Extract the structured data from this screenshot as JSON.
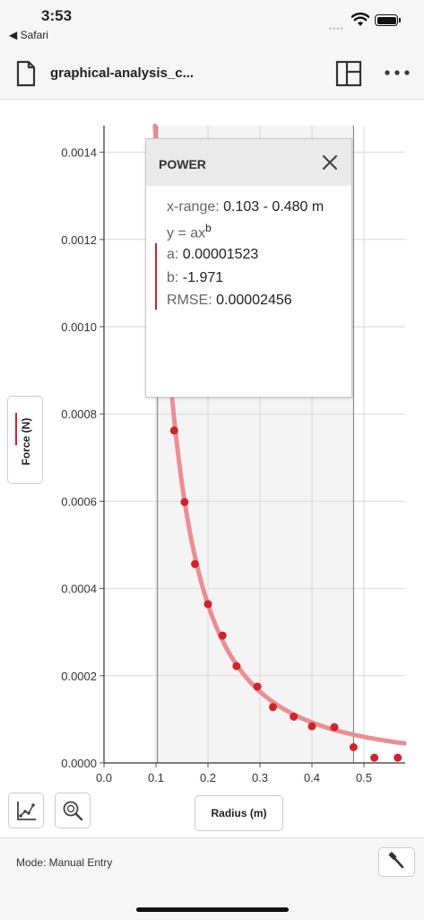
{
  "status_bar": {
    "time": "3:53",
    "back_label": "◀ Safari",
    "signal": "••••"
  },
  "toolbar": {
    "title": "graphical-analysis_c...",
    "file_icon": "file-icon",
    "layout_icon": "layout-grid-icon",
    "more_icon": "more-icon"
  },
  "chart_data": {
    "type": "scatter",
    "xlabel": "Radius (m)",
    "ylabel": "Force (N)",
    "xlim": [
      0.0,
      0.58
    ],
    "ylim": [
      0.0,
      0.00145
    ],
    "x_ticks": [
      "0.0",
      "0.1",
      "0.2",
      "0.3",
      "0.4",
      "0.5"
    ],
    "y_ticks": [
      "0.0000",
      "0.0002",
      "0.0004",
      "0.0006",
      "0.0008",
      "0.0010",
      "0.0012",
      "0.0014"
    ],
    "x_tick_values": [
      0.0,
      0.1,
      0.2,
      0.3,
      0.4,
      0.5
    ],
    "y_tick_values": [
      0.0,
      0.0002,
      0.0004,
      0.0006,
      0.0008,
      0.001,
      0.0012,
      0.0014
    ],
    "selection_range": [
      0.103,
      0.48
    ],
    "points": [
      {
        "x": 0.135,
        "y": 0.000762
      },
      {
        "x": 0.155,
        "y": 0.000598
      },
      {
        "x": 0.175,
        "y": 0.000456
      },
      {
        "x": 0.2,
        "y": 0.000364
      },
      {
        "x": 0.228,
        "y": 0.000292
      },
      {
        "x": 0.255,
        "y": 0.000222
      },
      {
        "x": 0.295,
        "y": 0.000175
      },
      {
        "x": 0.325,
        "y": 0.000128
      },
      {
        "x": 0.365,
        "y": 0.000106
      },
      {
        "x": 0.4,
        "y": 8.4e-05
      },
      {
        "x": 0.443,
        "y": 8.2e-05
      },
      {
        "x": 0.48,
        "y": 3.6e-05
      },
      {
        "x": 0.52,
        "y": 1.2e-05
      },
      {
        "x": 0.565,
        "y": 1.2e-05
      }
    ],
    "fit": {
      "type": "power",
      "a": 1.523e-05,
      "b": -1.971,
      "color": "#e8898e"
    },
    "point_color": "#d3222a",
    "grid": true
  },
  "fit_panel": {
    "title": "POWER",
    "x_range_label": "x-range:",
    "x_range_value": "0.103 - 0.480 m",
    "equation_base": "y = ax",
    "equation_exp": "b",
    "a_label": "a:",
    "a_value": "0.00001523",
    "b_label": "b:",
    "b_value": "-1.971",
    "rmse_label": "RMSE:",
    "rmse_value": "0.00002456"
  },
  "controls": {
    "ylabel_button": "Force (N)",
    "xlabel_button": "Radius (m)",
    "graph_icon": "graph-options-icon",
    "zoom_icon": "zoom-icon"
  },
  "footer": {
    "mode": "Mode: Manual Entry",
    "tool_icon": "tool-icon"
  },
  "colors": {
    "accent": "#d3222a",
    "fit": "#e8898e"
  }
}
